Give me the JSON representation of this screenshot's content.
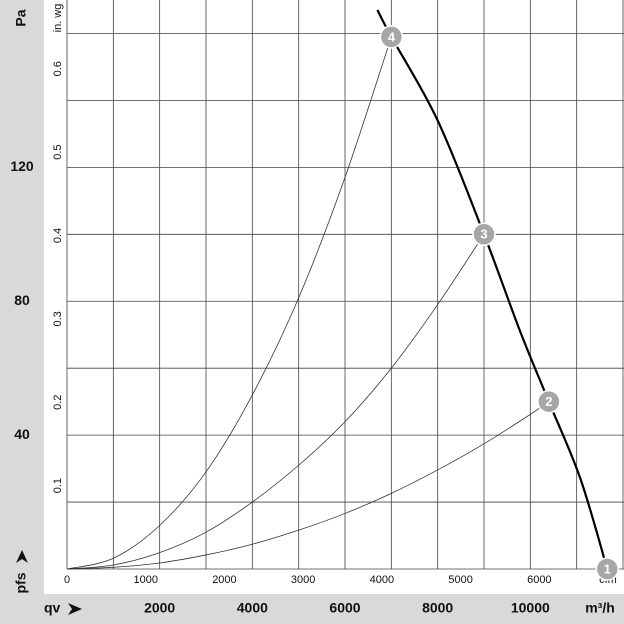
{
  "chart_data": {
    "type": "line",
    "ylabel": "pfs",
    "y_unit": "Pa",
    "y2_unit": "in. wg",
    "xlabel": "qv",
    "x_unit": "m³/h",
    "x2_unit": "cfm",
    "xlim": [
      0,
      12000
    ],
    "ylim": [
      0,
      170
    ],
    "x2lim": [
      0,
      7063
    ],
    "y2lim": [
      0,
      0.6825
    ],
    "xticks": [
      2000,
      4000,
      6000,
      8000,
      10000
    ],
    "yticks": [
      40,
      80,
      120
    ],
    "x2ticks": [
      0,
      1000,
      2000,
      3000,
      4000,
      5000,
      6000
    ],
    "y2ticks": [
      0.1,
      0.2,
      0.3,
      0.4,
      0.5,
      0.6
    ],
    "grid_x": [
      0,
      1000,
      2000,
      3000,
      4000,
      5000,
      6000,
      7000,
      8000,
      9000,
      10000,
      11000,
      12000
    ],
    "grid_y": [
      0,
      20,
      40,
      60,
      80,
      100,
      120,
      140,
      160
    ],
    "series": [
      {
        "color": "#000000",
        "x": [
          6700,
          7000,
          8000,
          9000,
          9780,
          10400,
          11080,
          11660
        ],
        "values": [
          167,
          159,
          134,
          100,
          71,
          50,
          27,
          0
        ]
      },
      {
        "color": "#333333",
        "x": [
          0,
          1000,
          2000,
          3000,
          4000,
          5000,
          6000,
          7000
        ],
        "values": [
          0,
          3.2,
          13,
          29,
          52,
          81,
          117,
          159
        ]
      },
      {
        "color": "#333333",
        "x": [
          0,
          1000,
          2000,
          3000,
          4000,
          5000,
          6000,
          7000,
          8000,
          9000
        ],
        "values": [
          0,
          1.2,
          4.9,
          11,
          20,
          31,
          44,
          60,
          79,
          100
        ]
      },
      {
        "color": "#333333",
        "x": [
          0,
          1000,
          2000,
          3000,
          4000,
          5000,
          6000,
          7000,
          8000,
          9000,
          10000,
          10400
        ],
        "values": [
          0,
          0.5,
          1.8,
          4.2,
          7.4,
          11.6,
          16.6,
          22.6,
          29.6,
          37.4,
          46.2,
          50
        ]
      }
    ],
    "points": [
      {
        "label": "1",
        "x": 11660,
        "y": 0
      },
      {
        "label": "2",
        "x": 10400,
        "y": 50
      },
      {
        "label": "3",
        "x": 9000,
        "y": 100
      },
      {
        "label": "4",
        "x": 7000,
        "y": 159
      }
    ]
  }
}
